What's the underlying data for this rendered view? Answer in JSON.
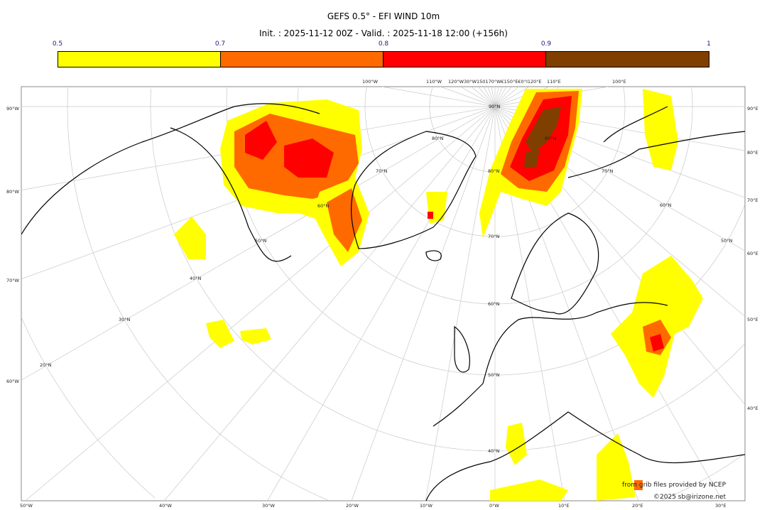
{
  "header": {
    "title": "GEFS 0.5° - EFI WIND 10m",
    "subtitle": "Init. : 2025-11-12 00Z - Valid. : 2025-11-18 12:00 (+156h)"
  },
  "colorbar": {
    "ticks": [
      "0.5",
      "0.7",
      "0.8",
      "0.9",
      "1"
    ],
    "bins": [
      {
        "from": 0.5,
        "to": 0.7,
        "color": "#ffff00"
      },
      {
        "from": 0.7,
        "to": 0.8,
        "color": "#ff6a00"
      },
      {
        "from": 0.8,
        "to": 0.9,
        "color": "#ff0000"
      },
      {
        "from": 0.9,
        "to": 1.0,
        "color": "#7f3f00"
      }
    ]
  },
  "map": {
    "bottom_labels": [
      "50°W",
      "40°W",
      "30°W",
      "20°W",
      "10°W",
      "0°W",
      "10°E",
      "20°E",
      "30°E"
    ],
    "left_labels": [
      "90°W",
      "80°W",
      "70°W",
      "60°W"
    ],
    "right_labels": [
      "90°E",
      "80°E",
      "70°E",
      "60°E",
      "50°E",
      "40°E"
    ],
    "top_labels": [
      "100°W",
      "110°W",
      "120°W30°W150170°W€150°E€0°I120°E",
      "110°E",
      "100°E"
    ],
    "lat_labels_left": [
      "90°N",
      "80°N",
      "70°N",
      "60°N",
      "50°N",
      "40°N",
      "30°N",
      "20°N"
    ],
    "lat_labels_center": [
      "80°N",
      "80°N",
      "70°N",
      "60°N",
      "50°N",
      "40°N"
    ],
    "lat_labels_right": [
      "70°N",
      "60°N",
      "50°N"
    ]
  },
  "credits": {
    "source": "from grib files provided by NCEP",
    "copyright": "©2025 sb@irizone.net"
  }
}
